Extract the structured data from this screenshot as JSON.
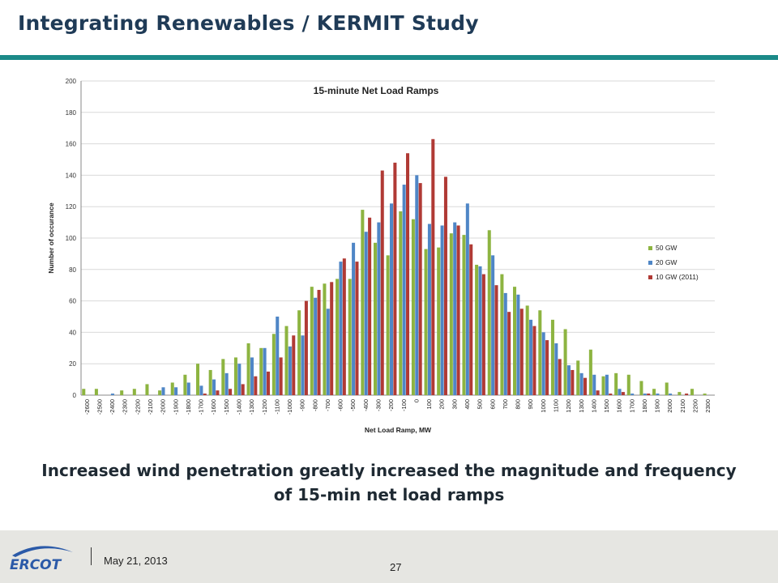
{
  "slide": {
    "title": "Integrating Renewables / KERMIT Study",
    "caption": "Increased wind penetration greatly increased the magnitude and frequency of 15-min net load ramps",
    "date": "May 21, 2013",
    "page_number": "27",
    "logo_text": "ERCOT"
  },
  "colors": {
    "title_rule": "#1b8a88",
    "series_50gw": "#8db441",
    "series_20gw": "#4f86c6",
    "series_10gw": "#b03a35",
    "logo_blue": "#2b5aa8"
  },
  "chart_data": {
    "type": "bar",
    "title": "15-minute Net Load Ramps",
    "xlabel": "Net Load Ramp, MW",
    "ylabel": "Number of occurance",
    "ylim": [
      0,
      200
    ],
    "yticks": [
      0,
      20,
      40,
      60,
      80,
      100,
      120,
      140,
      160,
      180,
      200
    ],
    "grid": true,
    "legend_position": "right",
    "categories": [
      "-2600",
      "-2500",
      "-2400",
      "-2300",
      "-2200",
      "-2100",
      "-2000",
      "-1900",
      "-1800",
      "-1700",
      "-1600",
      "-1500",
      "-1400",
      "-1300",
      "-1200",
      "-1100",
      "-1000",
      "-900",
      "-800",
      "-700",
      "-600",
      "-500",
      "-400",
      "-300",
      "-200",
      "-100",
      "0",
      "100",
      "200",
      "300",
      "400",
      "500",
      "600",
      "700",
      "800",
      "900",
      "1000",
      "1100",
      "1200",
      "1300",
      "1400",
      "1500",
      "1600",
      "1700",
      "1800",
      "1900",
      "2000",
      "2100",
      "2200",
      "2300"
    ],
    "series": [
      {
        "name": "50 GW",
        "values": [
          4,
          4,
          0,
          3,
          4,
          7,
          3,
          8,
          13,
          20,
          16,
          23,
          24,
          33,
          30,
          39,
          44,
          54,
          69,
          71,
          74,
          74,
          118,
          97,
          89,
          117,
          112,
          93,
          94,
          103,
          102,
          83,
          105,
          77,
          69,
          57,
          54,
          48,
          42,
          22,
          29,
          12,
          14,
          13,
          9,
          4,
          8,
          2,
          4,
          1
        ]
      },
      {
        "name": "20 GW",
        "values": [
          0,
          0,
          1,
          0,
          0,
          0,
          5,
          5,
          8,
          6,
          10,
          14,
          20,
          24,
          30,
          50,
          31,
          38,
          62,
          55,
          85,
          97,
          104,
          110,
          122,
          134,
          140,
          109,
          108,
          110,
          122,
          82,
          89,
          65,
          64,
          48,
          40,
          33,
          19,
          14,
          13,
          13,
          4,
          1,
          1,
          1,
          1,
          0,
          0,
          0
        ]
      },
      {
        "name": "10 GW (2011)",
        "values": [
          0,
          0,
          0,
          0,
          0,
          0,
          0,
          0,
          0,
          1,
          3,
          4,
          7,
          12,
          15,
          24,
          38,
          60,
          67,
          72,
          87,
          85,
          113,
          143,
          148,
          154,
          135,
          163,
          139,
          108,
          96,
          77,
          70,
          53,
          55,
          44,
          35,
          23,
          16,
          11,
          3,
          1,
          2,
          0,
          1,
          0,
          0,
          1,
          0,
          0
        ]
      }
    ]
  }
}
